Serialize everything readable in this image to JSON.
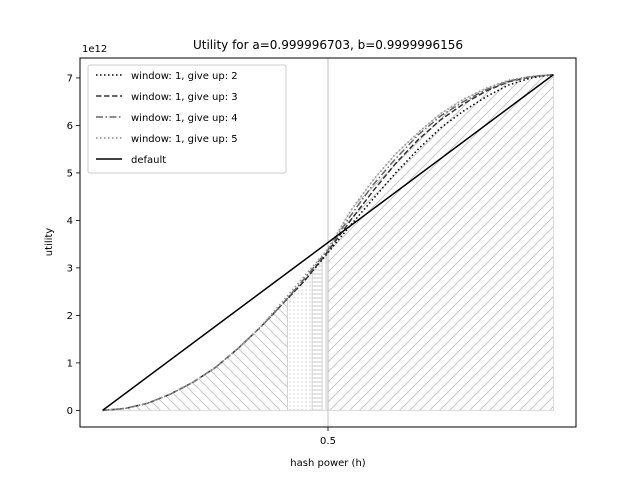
{
  "chart_data": {
    "type": "line",
    "title": "Utility for a=0.999996703, b=0.9999996156",
    "xlabel": "hash power (h)",
    "ylabel": "utility",
    "y_offset_label": "1e12",
    "xlim": [
      -0.05,
      1.05
    ],
    "ylim": [
      -0.35,
      7.42
    ],
    "x_ticks": [
      0.5
    ],
    "x_tick_labels": [
      "0.5"
    ],
    "y_ticks": [
      0,
      1,
      2,
      3,
      4,
      5,
      6,
      7
    ],
    "y_tick_labels": [
      "0",
      "1",
      "2",
      "3",
      "4",
      "5",
      "6",
      "7"
    ],
    "vline_x": 0.5,
    "legend_position": "upper-left",
    "series": [
      {
        "name": "window: 1, give up: 2",
        "style": "dotted",
        "color": "#000000",
        "x": [
          0,
          0.05,
          0.1,
          0.15,
          0.2,
          0.25,
          0.3,
          0.35,
          0.4,
          0.45,
          0.5,
          0.55,
          0.6,
          0.65,
          0.7,
          0.75,
          0.8,
          0.85,
          0.9,
          0.95,
          1
        ],
        "y": [
          0,
          0.04,
          0.15,
          0.34,
          0.59,
          0.9,
          1.3,
          1.75,
          2.25,
          2.75,
          3.32,
          3.9,
          4.45,
          5.0,
          5.5,
          5.95,
          6.3,
          6.6,
          6.85,
          7.0,
          7.07
        ]
      },
      {
        "name": "window: 1, give up: 3",
        "style": "dashed",
        "color": "#333333",
        "x": [
          0,
          0.05,
          0.1,
          0.15,
          0.2,
          0.25,
          0.3,
          0.35,
          0.4,
          0.45,
          0.5,
          0.55,
          0.6,
          0.65,
          0.7,
          0.75,
          0.8,
          0.85,
          0.9,
          0.95,
          1
        ],
        "y": [
          0,
          0.04,
          0.15,
          0.34,
          0.59,
          0.9,
          1.3,
          1.75,
          2.25,
          2.75,
          3.35,
          4.0,
          4.62,
          5.2,
          5.7,
          6.12,
          6.45,
          6.72,
          6.92,
          7.02,
          7.07
        ]
      },
      {
        "name": "window: 1, give up: 4",
        "style": "dashdot",
        "color": "#666666",
        "x": [
          0,
          0.05,
          0.1,
          0.15,
          0.2,
          0.25,
          0.3,
          0.35,
          0.4,
          0.45,
          0.5,
          0.55,
          0.6,
          0.65,
          0.7,
          0.75,
          0.8,
          0.85,
          0.9,
          0.95,
          1
        ],
        "y": [
          0,
          0.04,
          0.15,
          0.34,
          0.59,
          0.9,
          1.3,
          1.75,
          2.25,
          2.8,
          3.38,
          4.1,
          4.75,
          5.3,
          5.8,
          6.2,
          6.5,
          6.75,
          6.93,
          7.03,
          7.07
        ]
      },
      {
        "name": "window: 1, give up: 5",
        "style": "dotted-light",
        "color": "#999999",
        "x": [
          0,
          0.05,
          0.1,
          0.15,
          0.2,
          0.25,
          0.3,
          0.35,
          0.4,
          0.45,
          0.5,
          0.55,
          0.6,
          0.65,
          0.7,
          0.75,
          0.8,
          0.85,
          0.9,
          0.95,
          1
        ],
        "y": [
          0,
          0.04,
          0.15,
          0.34,
          0.59,
          0.9,
          1.3,
          1.75,
          2.3,
          2.85,
          3.4,
          4.2,
          4.85,
          5.4,
          5.85,
          6.25,
          6.55,
          6.78,
          6.95,
          7.03,
          7.07
        ]
      },
      {
        "name": "default",
        "style": "solid",
        "color": "#000000",
        "x": [
          0,
          1
        ],
        "y": [
          0,
          7.07
        ]
      }
    ],
    "hatched_regions": [
      {
        "x_start": 0.0,
        "x_end": 0.41,
        "hatch": "backslash"
      },
      {
        "x_start": 0.41,
        "x_end": 0.465,
        "hatch": "dots"
      },
      {
        "x_start": 0.465,
        "x_end": 0.487,
        "hatch": "horizontal"
      },
      {
        "x_start": 0.487,
        "x_end": 0.5,
        "hatch": "vertical"
      },
      {
        "x_start": 0.5,
        "x_end": 1.0,
        "hatch": "slash"
      }
    ]
  }
}
